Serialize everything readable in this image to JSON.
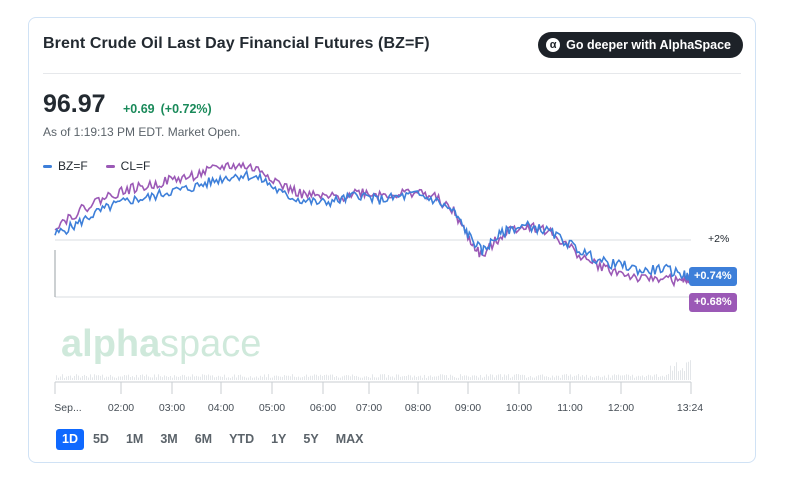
{
  "card": {
    "title": "Brent Crude Oil Last Day Financial Futures (BZ=F)",
    "deeper_button": {
      "icon": "alpha-icon",
      "icon_glyph": "α",
      "label": "Go deeper with AlphaSpace"
    }
  },
  "quote": {
    "price": "96.97",
    "change": "+0.69",
    "change_pct": "(+0.72%)",
    "as_of": "As of 1:19:13 PM EDT. Market Open."
  },
  "legend": [
    {
      "label": "BZ=F",
      "color": "#3d7fd9"
    },
    {
      "label": "CL=F",
      "color": "#9b59b6"
    }
  ],
  "chart": {
    "reference_label": "+2%",
    "bz_badge": "+0.74%",
    "cl_badge": "+0.68%",
    "watermark_alpha": "alpha",
    "watermark_space": "space"
  },
  "chart_data": {
    "type": "line",
    "x_ticks": [
      "Sep...",
      "02:00",
      "03:00",
      "04:00",
      "05:00",
      "06:00",
      "07:00",
      "08:00",
      "09:00",
      "10:00",
      "11:00",
      "12:00",
      "13:24"
    ],
    "reference_line_pct": 2,
    "series": [
      {
        "name": "BZ=F",
        "color": "#3d7fd9",
        "last_change_pct": 0.74,
        "x_hours": [
          0,
          0.4,
          0.8,
          1.2,
          1.6,
          2.0,
          2.4,
          2.8,
          3.2,
          3.6,
          4.0,
          4.4,
          4.8,
          5.2,
          5.6,
          6.0,
          6.4,
          6.8,
          7.2,
          7.6,
          8.0,
          8.4,
          8.7,
          9.0,
          9.3,
          9.6,
          10.0,
          10.4,
          10.8,
          11.2,
          11.6,
          12.0,
          12.4,
          12.8,
          13.2,
          13.4
        ],
        "values": [
          2.2,
          2.5,
          2.9,
          3.2,
          3.4,
          3.5,
          3.7,
          3.8,
          4.0,
          4.2,
          4.3,
          4.1,
          3.6,
          3.4,
          3.3,
          3.4,
          3.6,
          3.4,
          3.5,
          3.6,
          3.4,
          3.0,
          2.2,
          1.6,
          2.1,
          2.4,
          2.5,
          2.3,
          1.9,
          1.5,
          1.2,
          1.1,
          0.9,
          1.0,
          0.8,
          0.74
        ]
      },
      {
        "name": "CL=F",
        "color": "#9b59b6",
        "last_change_pct": 0.68,
        "x_hours": [
          0,
          0.4,
          0.8,
          1.2,
          1.6,
          2.0,
          2.4,
          2.8,
          3.2,
          3.6,
          4.0,
          4.4,
          4.8,
          5.2,
          5.6,
          6.0,
          6.4,
          6.8,
          7.2,
          7.6,
          8.0,
          8.4,
          8.7,
          9.0,
          9.3,
          9.6,
          10.0,
          10.4,
          10.8,
          11.2,
          11.6,
          12.0,
          12.4,
          12.8,
          13.2,
          13.4
        ],
        "values": [
          2.5,
          2.9,
          3.3,
          3.6,
          3.8,
          3.9,
          4.1,
          4.2,
          4.4,
          4.6,
          4.6,
          4.4,
          3.9,
          3.6,
          3.5,
          3.5,
          3.7,
          3.6,
          3.6,
          3.7,
          3.5,
          3.0,
          2.1,
          1.4,
          2.0,
          2.4,
          2.5,
          2.3,
          1.8,
          1.3,
          1.0,
          0.8,
          0.6,
          0.7,
          0.5,
          0.68
        ]
      }
    ]
  },
  "range_tabs": [
    {
      "label": "1D",
      "active": true
    },
    {
      "label": "5D"
    },
    {
      "label": "1M"
    },
    {
      "label": "3M"
    },
    {
      "label": "6M"
    },
    {
      "label": "YTD"
    },
    {
      "label": "1Y"
    },
    {
      "label": "5Y"
    },
    {
      "label": "MAX"
    }
  ]
}
